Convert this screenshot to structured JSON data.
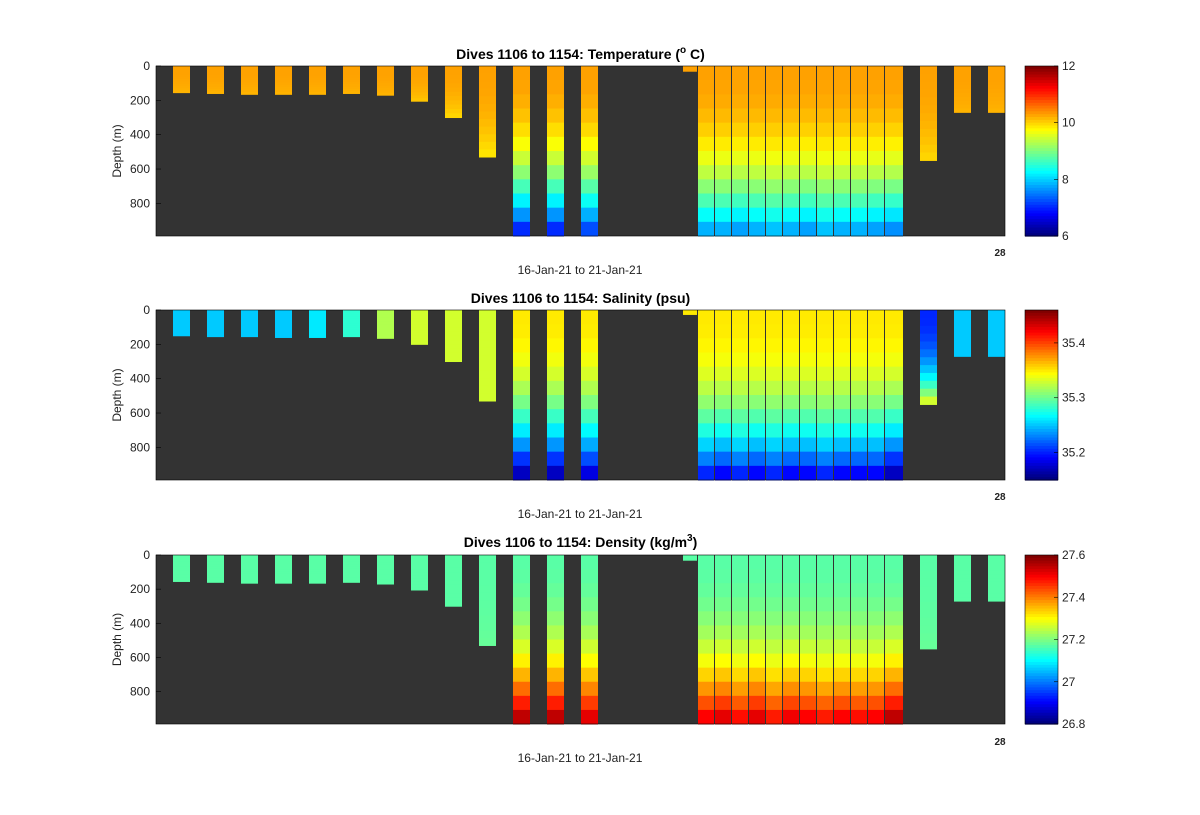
{
  "chart_data": [
    {
      "type": "heatmap",
      "title_main": "Dives 1106 to 1154: Temperature (",
      "title_sup": "o",
      "title_tail": " C)",
      "ylabel": "Depth (m)",
      "xlabel": "16-Jan-21 to 21-Jan-21",
      "x_end_label": "28",
      "yticks": [
        0,
        200,
        400,
        600,
        800
      ],
      "ylim": [
        0,
        990
      ],
      "colorbar": {
        "min": 6,
        "max": 12,
        "ticks": [
          6,
          8,
          10,
          12
        ]
      },
      "columns": [
        {
          "depth": 155,
          "surface": 10.3,
          "deep": 10.2
        },
        {
          "depth": 160,
          "surface": 10.3,
          "deep": 10.2
        },
        {
          "depth": 165,
          "surface": 10.3,
          "deep": 10.2
        },
        {
          "depth": 165,
          "surface": 10.3,
          "deep": 10.2
        },
        {
          "depth": 165,
          "surface": 10.3,
          "deep": 10.2
        },
        {
          "depth": 160,
          "surface": 10.3,
          "deep": 10.2
        },
        {
          "depth": 170,
          "surface": 10.3,
          "deep": 10.2
        },
        {
          "depth": 205,
          "surface": 10.3,
          "deep": 10.1
        },
        {
          "depth": 300,
          "surface": 10.3,
          "deep": 10.0
        },
        {
          "depth": 530,
          "surface": 10.3,
          "deep": 9.9
        },
        {
          "depth": 990,
          "surface": 10.3,
          "deep": 7.0
        },
        {
          "depth": 990,
          "surface": 10.3,
          "deep": 7.0
        },
        {
          "depth": 990,
          "surface": 10.3,
          "deep": 7.2
        },
        {
          "depth": 30,
          "surface": 10.3,
          "deep": 10.3
        },
        {
          "depth": 990,
          "surface": 10.3,
          "deep": 7.8
        },
        {
          "depth": 990,
          "surface": 10.3,
          "deep": 7.8
        },
        {
          "depth": 990,
          "surface": 10.3,
          "deep": 7.7
        },
        {
          "depth": 990,
          "surface": 10.3,
          "deep": 7.8
        },
        {
          "depth": 990,
          "surface": 10.3,
          "deep": 7.9
        },
        {
          "depth": 990,
          "surface": 10.3,
          "deep": 7.8
        },
        {
          "depth": 990,
          "surface": 10.3,
          "deep": 7.7
        },
        {
          "depth": 990,
          "surface": 10.3,
          "deep": 7.9
        },
        {
          "depth": 990,
          "surface": 10.3,
          "deep": 7.8
        },
        {
          "depth": 990,
          "surface": 10.3,
          "deep": 7.8
        },
        {
          "depth": 990,
          "surface": 10.3,
          "deep": 7.7
        },
        {
          "depth": 990,
          "surface": 10.3,
          "deep": 7.6
        },
        {
          "depth": 550,
          "surface": 10.3,
          "deep": 10.0
        },
        {
          "depth": 270,
          "surface": 10.3,
          "deep": 10.2
        }
      ]
    },
    {
      "type": "heatmap",
      "title_main": "Dives 1106 to 1154: Salinity (psu)",
      "title_sup": "",
      "title_tail": "",
      "ylabel": "Depth (m)",
      "xlabel": "16-Jan-21 to 21-Jan-21",
      "x_end_label": "28",
      "yticks": [
        0,
        200,
        400,
        600,
        800
      ],
      "ylim": [
        0,
        990
      ],
      "colorbar": {
        "min": 35.15,
        "max": 35.46,
        "ticks": [
          35.2,
          35.3,
          35.4
        ]
      },
      "columns": [
        {
          "depth": 150,
          "surface": 35.25,
          "deep": 35.25
        },
        {
          "depth": 155,
          "surface": 35.25,
          "deep": 35.25
        },
        {
          "depth": 155,
          "surface": 35.25,
          "deep": 35.25
        },
        {
          "depth": 160,
          "surface": 35.25,
          "deep": 35.25
        },
        {
          "depth": 160,
          "surface": 35.26,
          "deep": 35.26
        },
        {
          "depth": 155,
          "surface": 35.28,
          "deep": 35.28
        },
        {
          "depth": 165,
          "surface": 35.32,
          "deep": 35.32
        },
        {
          "depth": 200,
          "surface": 35.33,
          "deep": 35.33
        },
        {
          "depth": 300,
          "surface": 35.33,
          "deep": 35.33
        },
        {
          "depth": 530,
          "surface": 35.33,
          "deep": 35.33
        },
        {
          "depth": 990,
          "surface": 35.35,
          "deep": 35.17
        },
        {
          "depth": 990,
          "surface": 35.35,
          "deep": 35.17
        },
        {
          "depth": 990,
          "surface": 35.35,
          "deep": 35.18
        },
        {
          "depth": 25,
          "surface": 35.35,
          "deep": 35.35
        },
        {
          "depth": 990,
          "surface": 35.35,
          "deep": 35.2
        },
        {
          "depth": 990,
          "surface": 35.35,
          "deep": 35.19
        },
        {
          "depth": 990,
          "surface": 35.35,
          "deep": 35.2
        },
        {
          "depth": 990,
          "surface": 35.35,
          "deep": 35.19
        },
        {
          "depth": 990,
          "surface": 35.35,
          "deep": 35.2
        },
        {
          "depth": 990,
          "surface": 35.35,
          "deep": 35.19
        },
        {
          "depth": 990,
          "surface": 35.35,
          "deep": 35.19
        },
        {
          "depth": 990,
          "surface": 35.35,
          "deep": 35.2
        },
        {
          "depth": 990,
          "surface": 35.35,
          "deep": 35.19
        },
        {
          "depth": 990,
          "surface": 35.35,
          "deep": 35.19
        },
        {
          "depth": 990,
          "surface": 35.35,
          "deep": 35.19
        },
        {
          "depth": 990,
          "surface": 35.35,
          "deep": 35.17
        },
        {
          "depth": 550,
          "surface": 35.2,
          "deep": 35.33
        },
        {
          "depth": 270,
          "surface": 35.25,
          "deep": 35.25
        }
      ]
    },
    {
      "type": "heatmap",
      "title_main": "Dives 1106 to 1154: Density (kg/m",
      "title_sup": "3",
      "title_tail": ")",
      "ylabel": "Depth (m)",
      "xlabel": "16-Jan-21 to 21-Jan-21",
      "x_end_label": "28",
      "yticks": [
        0,
        200,
        400,
        600,
        800
      ],
      "ylim": [
        0,
        990
      ],
      "colorbar": {
        "min": 26.8,
        "max": 27.6,
        "ticks": [
          26.8,
          27,
          27.2,
          27.4,
          27.6
        ]
      },
      "columns": [
        {
          "depth": 155,
          "surface": 27.17,
          "deep": 27.17
        },
        {
          "depth": 160,
          "surface": 27.17,
          "deep": 27.17
        },
        {
          "depth": 165,
          "surface": 27.17,
          "deep": 27.17
        },
        {
          "depth": 165,
          "surface": 27.17,
          "deep": 27.17
        },
        {
          "depth": 165,
          "surface": 27.17,
          "deep": 27.17
        },
        {
          "depth": 160,
          "surface": 27.17,
          "deep": 27.17
        },
        {
          "depth": 170,
          "surface": 27.17,
          "deep": 27.17
        },
        {
          "depth": 205,
          "surface": 27.17,
          "deep": 27.17
        },
        {
          "depth": 300,
          "surface": 27.17,
          "deep": 27.17
        },
        {
          "depth": 530,
          "surface": 27.17,
          "deep": 27.18
        },
        {
          "depth": 990,
          "surface": 27.17,
          "deep": 27.55
        },
        {
          "depth": 990,
          "surface": 27.17,
          "deep": 27.55
        },
        {
          "depth": 990,
          "surface": 27.17,
          "deep": 27.52
        },
        {
          "depth": 30,
          "surface": 27.17,
          "deep": 27.17
        },
        {
          "depth": 990,
          "surface": 27.17,
          "deep": 27.5
        },
        {
          "depth": 990,
          "surface": 27.17,
          "deep": 27.52
        },
        {
          "depth": 990,
          "surface": 27.17,
          "deep": 27.49
        },
        {
          "depth": 990,
          "surface": 27.17,
          "deep": 27.52
        },
        {
          "depth": 990,
          "surface": 27.17,
          "deep": 27.48
        },
        {
          "depth": 990,
          "surface": 27.17,
          "deep": 27.51
        },
        {
          "depth": 990,
          "surface": 27.17,
          "deep": 27.5
        },
        {
          "depth": 990,
          "surface": 27.17,
          "deep": 27.48
        },
        {
          "depth": 990,
          "surface": 27.17,
          "deep": 27.5
        },
        {
          "depth": 990,
          "surface": 27.17,
          "deep": 27.49
        },
        {
          "depth": 990,
          "surface": 27.17,
          "deep": 27.5
        },
        {
          "depth": 990,
          "surface": 27.17,
          "deep": 27.55
        },
        {
          "depth": 550,
          "surface": 27.17,
          "deep": 27.18
        },
        {
          "depth": 270,
          "surface": 27.17,
          "deep": 27.17
        }
      ]
    }
  ],
  "colors": {
    "plot_background": "#333333",
    "axis": "#000000"
  }
}
